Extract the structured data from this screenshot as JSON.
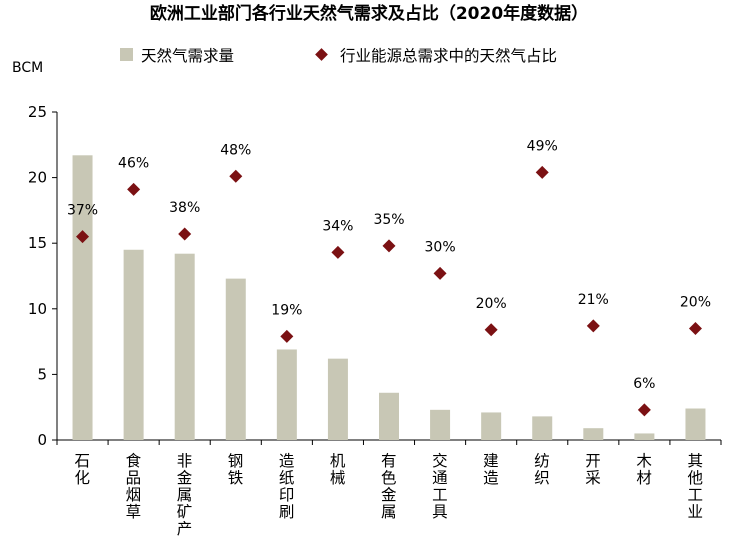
{
  "chart_data": {
    "type": "bar",
    "title": "欧洲工业部门各行业天然气需求及占比（2020年度数据）",
    "ylabel": "BCM",
    "ylim": [
      0,
      25
    ],
    "yticks": [
      0,
      5,
      10,
      15,
      20,
      25
    ],
    "categories": [
      "石化",
      "食品烟草",
      "非金属矿产",
      "钢铁",
      "造纸印刷",
      "机械",
      "有色金属",
      "交通工具",
      "建造",
      "纺织",
      "开采",
      "木材",
      "其他工业"
    ],
    "series": [
      {
        "name": "天然气需求量",
        "kind": "bar",
        "color": "#c8c7b5",
        "values": [
          21.7,
          14.5,
          14.2,
          12.3,
          6.9,
          6.2,
          3.6,
          2.3,
          2.1,
          1.8,
          0.9,
          0.5,
          2.4
        ]
      },
      {
        "name": "行业能源总需求中的天然气占比",
        "kind": "marker",
        "color": "#7b1113",
        "values": [
          15.5,
          19.1,
          15.7,
          20.1,
          7.9,
          14.3,
          14.8,
          12.7,
          8.4,
          20.4,
          8.7,
          2.3,
          8.5
        ],
        "labels": [
          "37%",
          "46%",
          "38%",
          "48%",
          "19%",
          "34%",
          "35%",
          "30%",
          "20%",
          "49%",
          "21%",
          "6%",
          "20%"
        ]
      }
    ]
  }
}
